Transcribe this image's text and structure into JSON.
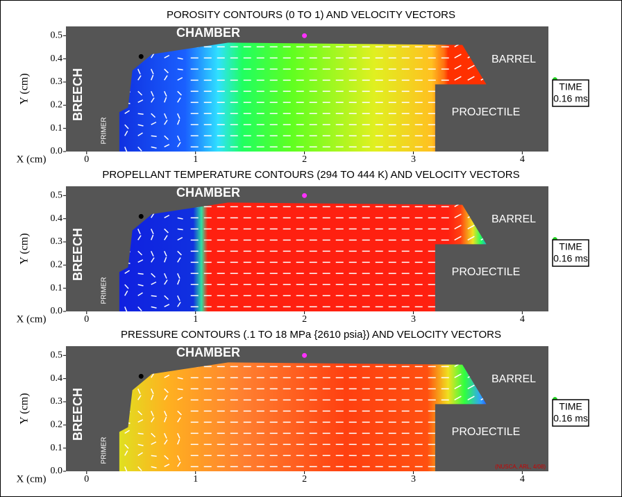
{
  "chart_data": [
    {
      "type": "contour",
      "title": "POROSITY CONTOURS (0 TO 1) AND VELOCITY VECTORS",
      "xlabel": "X (cm)",
      "ylabel": "Y (cm)",
      "xlim": [
        -0.19,
        4.24
      ],
      "ylim": [
        0,
        0.54
      ],
      "xticks": [
        0,
        1,
        2,
        3,
        4
      ],
      "yticks": [
        {
          "value": 0,
          "label": "0.0"
        },
        0.1,
        0.2,
        0.3,
        0.4,
        0.5
      ],
      "regions": {
        "chamber": "CHAMBER",
        "breech": "BREECH",
        "barrel": "BARREL",
        "projectile": "PROJECTILE",
        "primer": "PRIMER"
      },
      "time": {
        "label": "TIME",
        "value": "0.16 ms"
      }
    },
    {
      "type": "contour",
      "title": "PROPELLANT TEMPERATURE CONTOURS (294 TO 444 K) AND VELOCITY VECTORS",
      "xlabel": "X (cm)",
      "ylabel": "Y (cm)",
      "xlim": [
        -0.19,
        4.24
      ],
      "ylim": [
        0,
        0.54
      ],
      "xticks": [
        0,
        1,
        2,
        3,
        4
      ],
      "yticks": [
        {
          "value": 0,
          "label": "0.0"
        },
        0.1,
        0.2,
        0.3,
        0.4,
        0.5
      ],
      "regions": {
        "chamber": "CHAMBER",
        "breech": "BREECH",
        "barrel": "BARREL",
        "projectile": "PROJECTILE",
        "primer": "PRIMER"
      },
      "time": {
        "label": "TIME",
        "value": "0.16 ms"
      }
    },
    {
      "type": "contour",
      "title": "PRESSURE CONTOURS (.1 TO 18 MPa {2610 psia}) AND VELOCITY VECTORS",
      "xlabel": "X (cm)",
      "ylabel": "Y (cm)",
      "xlim": [
        -0.19,
        4.24
      ],
      "ylim": [
        0,
        0.54
      ],
      "xticks": [
        0,
        1,
        2,
        3,
        4
      ],
      "yticks": [
        {
          "value": 0,
          "label": "0.0"
        },
        0.1,
        0.2,
        0.3,
        0.4,
        0.5
      ],
      "regions": {
        "chamber": "CHAMBER",
        "breech": "BREECH",
        "barrel": "BARREL",
        "projectile": "PROJECTILE",
        "primer": "PRIMER"
      },
      "time": {
        "label": "TIME",
        "value": "0.16 ms"
      },
      "credit": "(NUSCA, ARL, 4/08)"
    }
  ]
}
